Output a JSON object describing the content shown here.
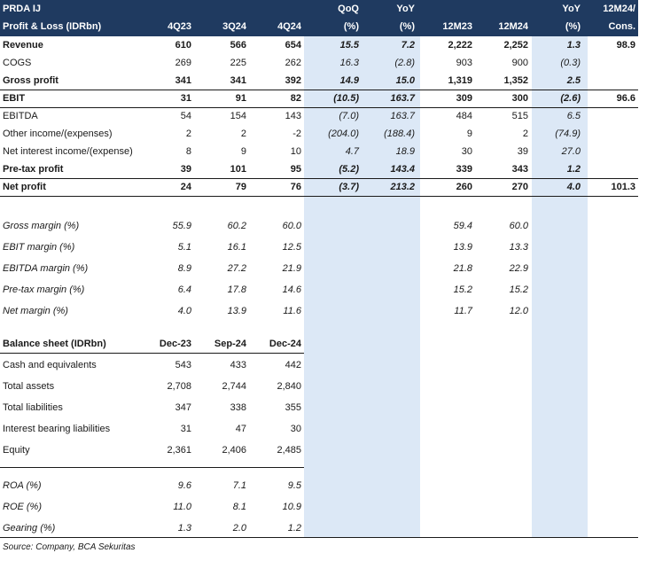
{
  "header": {
    "row1": [
      "PRDA IJ",
      "",
      "",
      "",
      "QoQ",
      "YoY",
      "",
      "",
      "YoY",
      "12M24/"
    ],
    "row2": [
      "Profit & Loss (IDRbn)",
      "4Q23",
      "3Q24",
      "4Q24",
      "(%)",
      "(%)",
      "12M23",
      "12M24",
      "(%)",
      "Cons."
    ]
  },
  "pnl": [
    {
      "label": "Revenue",
      "bold": true,
      "v": [
        "610",
        "566",
        "654",
        "15.5",
        "7.2",
        "2,222",
        "2,252",
        "1.3",
        "98.9"
      ]
    },
    {
      "label": "COGS",
      "bold": false,
      "v": [
        "269",
        "225",
        "262",
        "16.3",
        "(2.8)",
        "903",
        "900",
        "(0.3)",
        ""
      ]
    },
    {
      "label": "Gross profit",
      "bold": true,
      "v": [
        "341",
        "341",
        "392",
        "14.9",
        "15.0",
        "1,319",
        "1,352",
        "2.5",
        ""
      ]
    },
    {
      "label": "EBIT",
      "bold": true,
      "v": [
        "31",
        "91",
        "82",
        "(10.5)",
        "163.7",
        "309",
        "300",
        "(2.6)",
        "96.6"
      ]
    },
    {
      "label": "EBITDA",
      "bold": false,
      "v": [
        "54",
        "154",
        "143",
        "(7.0)",
        "163.7",
        "484",
        "515",
        "6.5",
        ""
      ]
    },
    {
      "label": "Other income/(expenses)",
      "bold": false,
      "v": [
        "2",
        "2",
        "-2",
        "(204.0)",
        "(188.4)",
        "9",
        "2",
        "(74.9)",
        ""
      ]
    },
    {
      "label": "Net interest income/(expense)",
      "bold": false,
      "v": [
        "8",
        "9",
        "10",
        "4.7",
        "18.9",
        "30",
        "39",
        "27.0",
        ""
      ]
    },
    {
      "label": "Pre-tax profit",
      "bold": true,
      "v": [
        "39",
        "101",
        "95",
        "(5.2)",
        "143.4",
        "339",
        "343",
        "1.2",
        ""
      ]
    },
    {
      "label": "Net profit",
      "bold": true,
      "v": [
        "24",
        "79",
        "76",
        "(3.7)",
        "213.2",
        "260",
        "270",
        "4.0",
        "101.3"
      ]
    }
  ],
  "margins": [
    {
      "label": "Gross margin (%)",
      "v": [
        "55.9",
        "60.2",
        "60.0",
        "",
        "",
        "59.4",
        "60.0",
        "",
        ""
      ]
    },
    {
      "label": "EBIT margin (%)",
      "v": [
        "5.1",
        "16.1",
        "12.5",
        "",
        "",
        "13.9",
        "13.3",
        "",
        ""
      ]
    },
    {
      "label": "EBITDA margin (%)",
      "v": [
        "8.9",
        "27.2",
        "21.9",
        "",
        "",
        "21.8",
        "22.9",
        "",
        ""
      ]
    },
    {
      "label": "Pre-tax margin (%)",
      "v": [
        "6.4",
        "17.8",
        "14.6",
        "",
        "",
        "15.2",
        "15.2",
        "",
        ""
      ]
    },
    {
      "label": "Net margin (%)",
      "v": [
        "4.0",
        "13.9",
        "11.6",
        "",
        "",
        "11.7",
        "12.0",
        "",
        ""
      ]
    }
  ],
  "balance_header": {
    "label": "Balance sheet (IDRbn)",
    "v": [
      "Dec-23",
      "Sep-24",
      "Dec-24"
    ]
  },
  "balance": [
    {
      "label": "Cash and equivalents",
      "v": [
        "543",
        "433",
        "442"
      ]
    },
    {
      "label": "Total assets",
      "v": [
        "2,708",
        "2,744",
        "2,840"
      ]
    },
    {
      "label": "Total liabilities",
      "v": [
        "347",
        "338",
        "355"
      ]
    },
    {
      "label": "Interest bearing liabilities",
      "v": [
        "31",
        "47",
        "30"
      ]
    },
    {
      "label": "Equity",
      "v": [
        "2,361",
        "2,406",
        "2,485"
      ]
    }
  ],
  "ratios": [
    {
      "label": "ROA (%)",
      "v": [
        "9.6",
        "7.1",
        "9.5"
      ]
    },
    {
      "label": "ROE (%)",
      "v": [
        "11.0",
        "8.1",
        "10.9"
      ]
    },
    {
      "label": "Gearing (%)",
      "v": [
        "1.3",
        "2.0",
        "1.2"
      ]
    }
  ],
  "source": "Source: Company, BCA Sekuritas",
  "colors": {
    "header_bg": "#1f3a60",
    "band_bg": "#dce8f6",
    "text": "#1a1a1a"
  }
}
